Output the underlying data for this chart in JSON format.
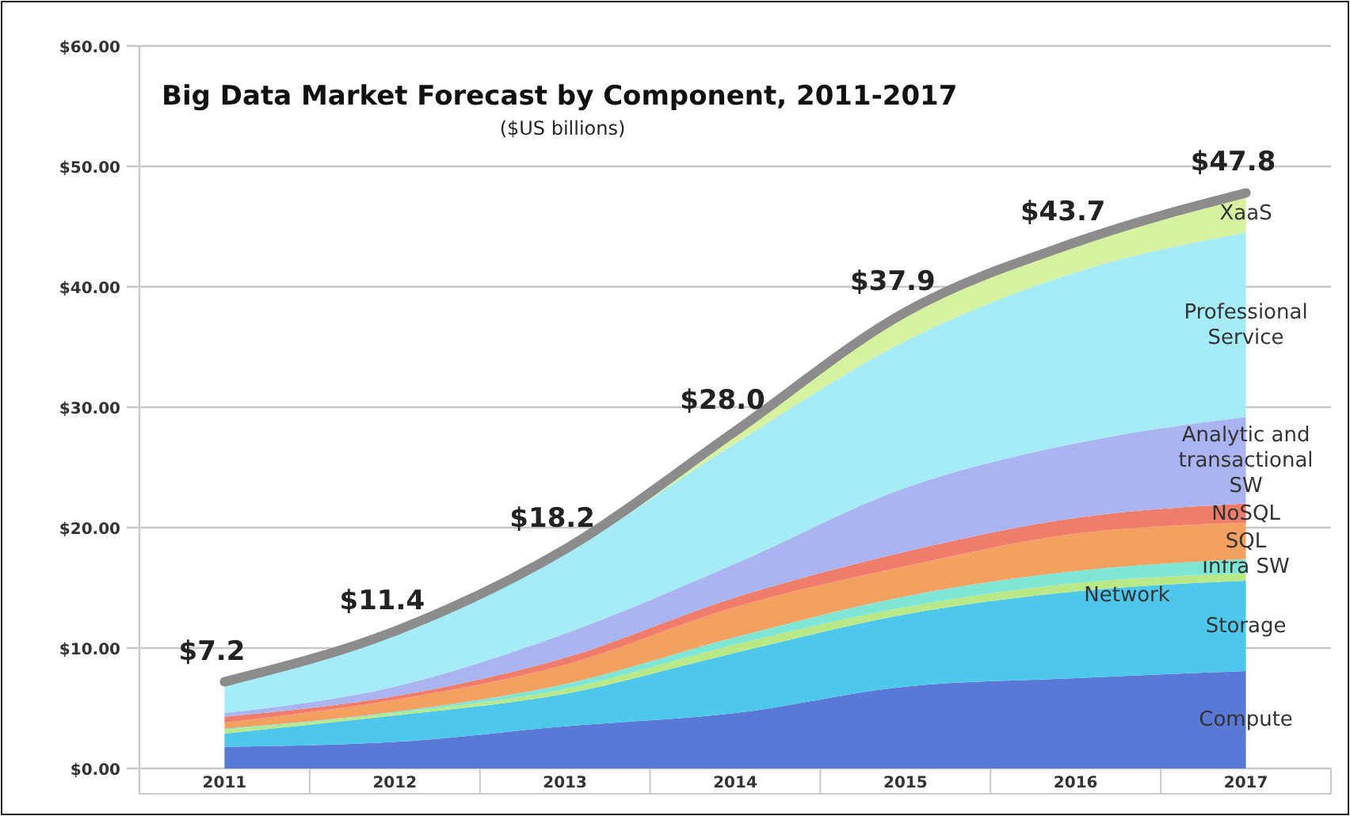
{
  "chart_data": {
    "type": "area",
    "stacked": true,
    "title": "Big Data Market Forecast by Component, 2011-2017",
    "subtitle": "($US billions)",
    "categories": [
      "2011",
      "2012",
      "2013",
      "2014",
      "2015",
      "2016",
      "2017"
    ],
    "ylim": [
      0,
      60
    ],
    "yticks": [
      {
        "value": 0,
        "label": "$0.00"
      },
      {
        "value": 10,
        "label": "$10.00"
      },
      {
        "value": 20,
        "label": "$20.00"
      },
      {
        "value": 30,
        "label": "$30.00"
      },
      {
        "value": 40,
        "label": "$40.00"
      },
      {
        "value": 50,
        "label": "$50.00"
      },
      {
        "value": 60,
        "label": "$60.00"
      }
    ],
    "grid": "y",
    "series": [
      {
        "name": "Compute",
        "color": "#5a78d6",
        "values": [
          1.8,
          2.2,
          3.5,
          4.6,
          6.8,
          7.5,
          8.1
        ]
      },
      {
        "name": "Storage",
        "color": "#4dc8ec",
        "values": [
          1.1,
          2.2,
          2.7,
          5.0,
          6.0,
          7.2,
          7.5
        ]
      },
      {
        "name": "Network",
        "color": "#b8e986",
        "values": [
          0.3,
          0.2,
          0.4,
          0.7,
          0.6,
          0.7,
          0.6
        ]
      },
      {
        "name": "Infra SW",
        "color": "#7fe6d6",
        "values": [
          0.1,
          0.1,
          0.4,
          0.6,
          0.9,
          1.0,
          1.2
        ]
      },
      {
        "name": "SQL",
        "color": "#f4a060",
        "values": [
          0.5,
          1.0,
          1.6,
          2.5,
          2.5,
          3.1,
          3.0
        ]
      },
      {
        "name": "NoSQL",
        "color": "#f07c6c",
        "values": [
          0.5,
          0.3,
          0.6,
          0.8,
          1.2,
          1.3,
          1.6
        ]
      },
      {
        "name": "Analytic and transactional SW",
        "color": "#a9b4f0",
        "values": [
          0.3,
          0.8,
          2.0,
          2.8,
          5.3,
          6.2,
          7.2
        ]
      },
      {
        "name": "Professional Service",
        "color": "#a6ecf8",
        "values": [
          2.3,
          4.3,
          6.7,
          10.0,
          12.2,
          14.2,
          15.3
        ]
      },
      {
        "name": "XaaS",
        "color": "#d6f2a0",
        "values": [
          0.3,
          0.3,
          0.3,
          1.0,
          2.4,
          2.5,
          3.3
        ]
      }
    ],
    "totals": [
      "$7.2",
      "$11.4",
      "$18.2",
      "$28.0",
      "$37.9",
      "$43.7",
      "$47.8"
    ]
  }
}
